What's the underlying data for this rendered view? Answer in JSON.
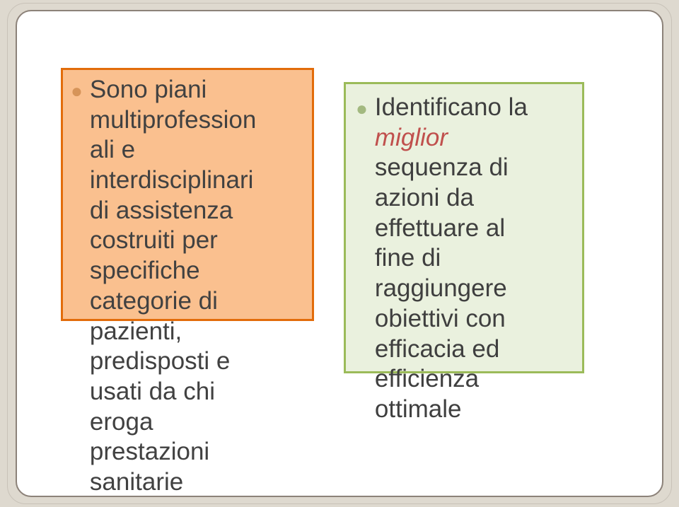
{
  "slide": {
    "background_color": "#ded9cf",
    "frame_color": "#8c8279",
    "panel_color": "#ffffff"
  },
  "left_box": {
    "fill": "#fac08f",
    "border": "#e26c0a",
    "bullet_color": "#d69459",
    "bullet_glyph": "●",
    "lines": [
      "Sono piani",
      "multiprofession",
      "ali e",
      "interdisciplinari",
      "di assistenza",
      "costruiti per",
      "specifiche",
      "categorie di",
      "pazienti,",
      "predisposti e",
      "usati da chi",
      "eroga",
      "prestazioni",
      "sanitarie"
    ]
  },
  "right_box": {
    "fill": "#eaf1de",
    "border": "#9bbb59",
    "bullet_color": "#a3b980",
    "bullet_glyph": "●",
    "emphasis_word": "miglior",
    "emphasis_color": "#c0504d",
    "lines": [
      "Identificano la",
      "miglior",
      "sequenza di",
      "azioni da",
      "effettuare al",
      "fine di",
      "raggiungere",
      "obiettivi con",
      "efficacia ed",
      "efficienza",
      "ottimale"
    ]
  },
  "typography": {
    "body_fontsize_pt": 26,
    "body_color": "#414141",
    "font_family": "Verdana"
  }
}
